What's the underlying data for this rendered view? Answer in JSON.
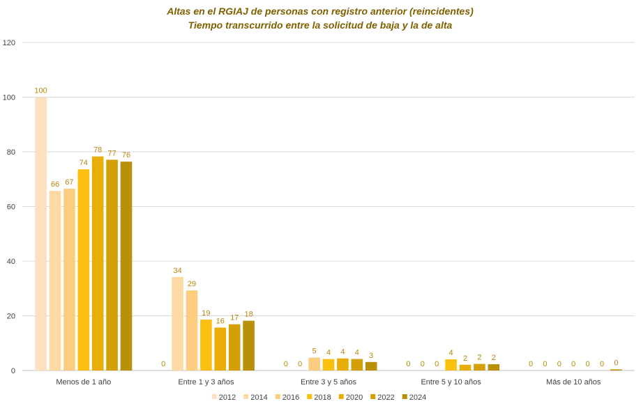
{
  "chart_data": {
    "type": "bar",
    "title_lines": [
      "Altas en el RGIAJ de personas con registro anterior (reincidentes)",
      "Tiempo transcurrido entre la solicitud de baja y la de alta"
    ],
    "categories": [
      "Menos de 1 año",
      "Entre 1 y 3 años",
      "Entre 3 y 5 años",
      "Entre 5 y 10 años",
      "Más de 10 años"
    ],
    "series": [
      {
        "name": "2012",
        "color": "#fde0bf",
        "values": [
          100,
          0,
          0,
          0,
          0
        ],
        "labels": [
          "100",
          "0",
          "0",
          "0",
          "0"
        ]
      },
      {
        "name": "2014",
        "color": "#fdd9a3",
        "values": [
          65.7,
          34.2,
          0,
          0,
          0
        ],
        "labels": [
          "66",
          "34",
          "0",
          "0",
          "0"
        ]
      },
      {
        "name": "2016",
        "color": "#fccd7e",
        "values": [
          66.5,
          29.3,
          4.7,
          0,
          0
        ],
        "labels": [
          "67",
          "29",
          "5",
          "0",
          "0"
        ]
      },
      {
        "name": "2018",
        "color": "#fbbf10",
        "values": [
          73.6,
          18.6,
          4.2,
          4.1,
          0
        ],
        "labels": [
          "74",
          "19",
          "4",
          "4",
          "0"
        ]
      },
      {
        "name": "2020",
        "color": "#e9ad06",
        "values": [
          78.3,
          15.7,
          4.4,
          2.1,
          0
        ],
        "labels": [
          "78",
          "16",
          "4",
          "2",
          "0"
        ]
      },
      {
        "name": "2022",
        "color": "#d49e05",
        "values": [
          77.1,
          16.9,
          4.2,
          2.4,
          0
        ],
        "labels": [
          "77",
          "17",
          "4",
          "2",
          "0"
        ]
      },
      {
        "name": "2024",
        "color": "#b8900a",
        "values": [
          76.4,
          18.2,
          3.1,
          2.3,
          0.4
        ],
        "labels": [
          "76",
          "18",
          "3",
          "2",
          "0"
        ]
      }
    ],
    "yticks": [
      "0",
      "20",
      "40",
      "60",
      "80",
      "100",
      "120"
    ],
    "ylim": [
      0,
      120
    ],
    "grid": true,
    "legend_position": "bottom"
  }
}
